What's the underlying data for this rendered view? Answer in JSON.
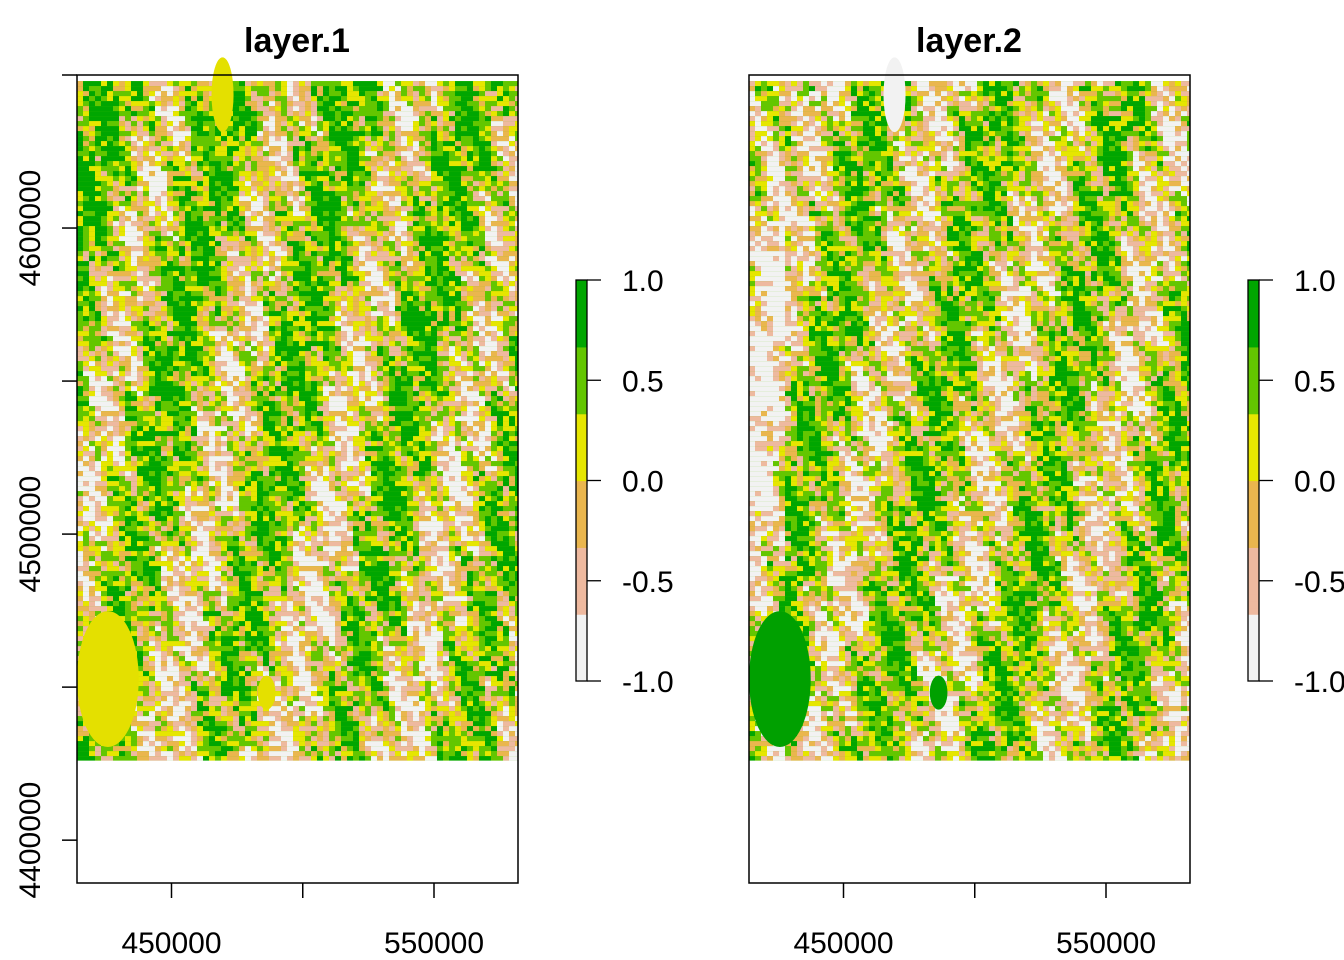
{
  "chart_data": [
    {
      "type": "heatmap",
      "title": "layer.1",
      "xlabel": "",
      "ylabel": "",
      "x_ticks": [
        400000,
        450000,
        500000,
        550000,
        600000
      ],
      "x_tick_labels": [
        "450000",
        "550000"
      ],
      "y_ticks": [
        4400000,
        4450000,
        4500000,
        4550000,
        4600000,
        4650000
      ],
      "y_tick_labels": [
        "4400000",
        "4500000",
        "4600000"
      ],
      "xlim": [
        414000,
        582000
      ],
      "ylim": [
        4386000,
        4650000
      ],
      "raster_extent": {
        "x": [
          414000,
          582000
        ],
        "y": [
          4426000,
          4648000
        ]
      },
      "legend": {
        "ticks": [
          1.0,
          0.5,
          0.0,
          -0.5,
          -1.0
        ],
        "tick_labels": [
          "1.0",
          "0.5",
          "0.0",
          "-0.5",
          "-1.0"
        ],
        "range": [
          -1.0,
          1.0
        ]
      },
      "colors": {
        "high": "#00A600",
        "mid_high": "#63C600",
        "mid": "#E6E600",
        "mid_low": "#EAB64E",
        "low": "#EEB99F",
        "lowest": "#F2F2F2"
      },
      "blobs": [
        {
          "cx": 0.33,
          "cy": 0.02,
          "rx": 0.025,
          "ry": 0.055
        },
        {
          "cx": 0.07,
          "cy": 0.88,
          "rx": 0.07,
          "ry": 0.1
        },
        {
          "cx": 0.43,
          "cy": 0.9,
          "rx": 0.02,
          "ry": 0.025
        }
      ],
      "blob_color": "#E4E000",
      "seed": 7
    },
    {
      "type": "heatmap",
      "title": "layer.2",
      "xlabel": "",
      "ylabel": "",
      "x_ticks": [
        400000,
        450000,
        500000,
        550000,
        600000
      ],
      "x_tick_labels": [
        "450000",
        "550000"
      ],
      "y_ticks": [],
      "y_tick_labels": [],
      "xlim": [
        414000,
        582000
      ],
      "ylim": [
        4386000,
        4650000
      ],
      "raster_extent": {
        "x": [
          414000,
          582000
        ],
        "y": [
          4426000,
          4648000
        ]
      },
      "legend": {
        "ticks": [
          1.0,
          0.5,
          0.0,
          -0.5,
          -1.0
        ],
        "tick_labels": [
          "1.0",
          "0.5",
          "0.0",
          "-0.5",
          "-1.0"
        ],
        "range": [
          -1.0,
          1.0
        ]
      },
      "colors": {
        "high": "#00A600",
        "mid_high": "#63C600",
        "mid": "#E6E600",
        "mid_low": "#EAB64E",
        "low": "#EEB99F",
        "lowest": "#F2F2F2"
      },
      "blobs": [
        {
          "cx": 0.33,
          "cy": 0.02,
          "rx": 0.025,
          "ry": 0.055
        },
        {
          "cx": 0.07,
          "cy": 0.88,
          "rx": 0.07,
          "ry": 0.1
        },
        {
          "cx": 0.43,
          "cy": 0.9,
          "rx": 0.02,
          "ry": 0.025
        }
      ],
      "blob_color": "#00A000",
      "top_blob_color": "#F2F2F2",
      "seed": 23
    }
  ]
}
